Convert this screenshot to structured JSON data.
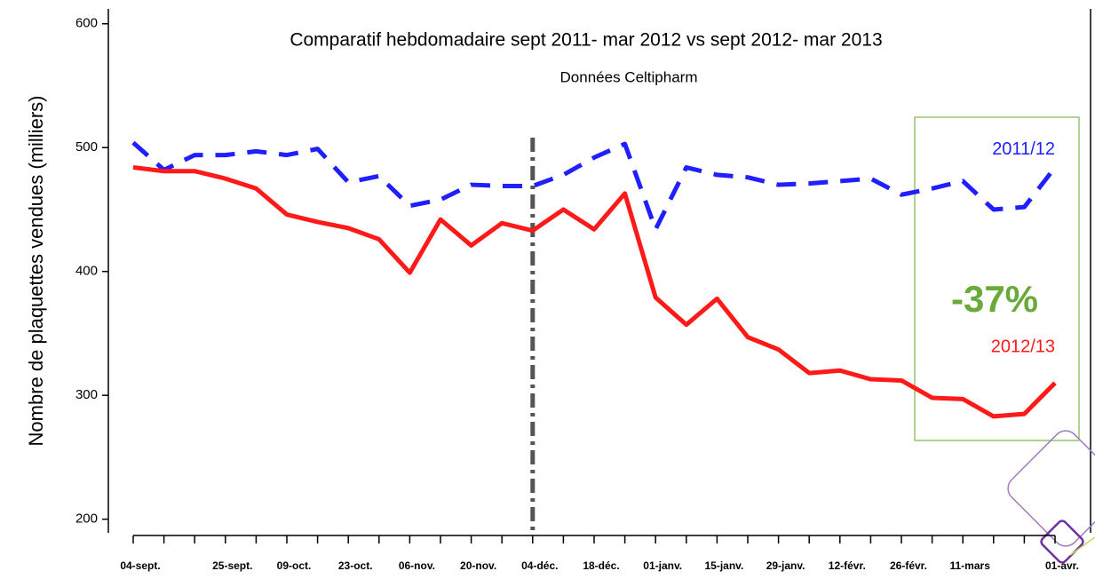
{
  "chart_data": {
    "type": "line",
    "title": "Comparatif hebdomadaire sept 2011- mar 2012 vs sept 2012- mar 2013",
    "subtitle": "Données Celtipharm",
    "y_label": "Nombre de plaquettes vendues  (milliers)",
    "annotation": "-37%",
    "vertical_line": "04-déc.",
    "categories": [
      "04-sept.",
      null,
      null,
      "25-sept.",
      null,
      "09-oct.",
      null,
      "23-oct.",
      null,
      "06-nov.",
      null,
      "20-nov.",
      null,
      "04-déc.",
      null,
      "18-déc.",
      null,
      "01-janv.",
      null,
      "15-janv.",
      null,
      "29-janv.",
      null,
      "12-févr.",
      null,
      "26-févr.",
      null,
      "11-mars",
      null,
      null,
      "01-avr."
    ],
    "series": [
      {
        "name": "2011/12",
        "color": "#1f1fff",
        "dashed": true,
        "values": [
          504,
          482,
          494,
          494,
          497,
          494,
          499,
          472,
          477,
          453,
          458,
          470,
          469,
          469,
          478,
          492,
          503,
          434,
          484,
          478,
          476,
          470,
          471,
          473,
          475,
          462,
          467,
          473,
          450,
          452,
          484
        ]
      },
      {
        "name": "2012/13",
        "color": "#ff1a1a",
        "dashed": false,
        "values": [
          484,
          481,
          481,
          475,
          467,
          446,
          440,
          435,
          426,
          399,
          442,
          421,
          439,
          433,
          450,
          434,
          463,
          379,
          357,
          378,
          347,
          337,
          318,
          320,
          313,
          312,
          298,
          297,
          283,
          285,
          310
        ]
      }
    ],
    "ylim": [
      189,
      612
    ],
    "yticks": [
      200,
      300,
      400,
      500,
      600
    ],
    "grid": false
  }
}
